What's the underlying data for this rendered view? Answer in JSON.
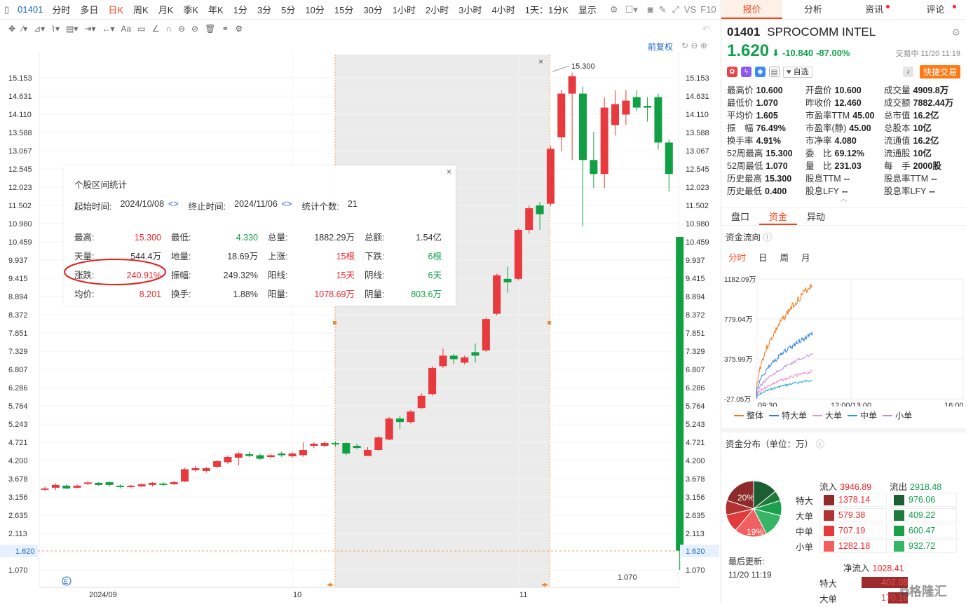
{
  "topbar": {
    "code": "01401",
    "tabs": [
      "分时",
      "多日",
      "日K",
      "周K",
      "月K",
      "季K",
      "年K",
      "1分",
      "3分",
      "5分",
      "10分",
      "15分",
      "30分",
      "1小时",
      "2小时",
      "3小时",
      "4小时",
      "1天：1分K",
      "显示"
    ],
    "active_tab": "日K",
    "vs_label": "VS",
    "f10_label": "F10"
  },
  "toolbar": {
    "text_tool": "Aa",
    "restore_label": "前复权"
  },
  "chart": {
    "price_labels": [
      "15.153",
      "14.631",
      "14.110",
      "13.588",
      "13.067",
      "12.545",
      "12.023",
      "11.502",
      "10.980",
      "10.459",
      "9.937",
      "9.415",
      "8.894",
      "8.372",
      "7.851",
      "7.329",
      "6.807",
      "6.286",
      "5.764",
      "5.243",
      "4.721",
      "4.200",
      "3.678",
      "3.156",
      "2.635",
      "2.113",
      "1.620",
      "1.070"
    ],
    "current_price_tag": "1.620",
    "date_labels": [
      "2024/09",
      "10",
      "11"
    ],
    "high_mark": "15.300",
    "low_mark": "1.070",
    "e_badge": "E",
    "sel_close": "×"
  },
  "chart_data": {
    "type": "candlestick",
    "ylim": [
      1.07,
      15.153
    ],
    "candles": [
      {
        "o": 3.38,
        "c": 3.4,
        "h": 3.45,
        "l": 3.33
      },
      {
        "o": 3.42,
        "c": 3.5,
        "h": 3.55,
        "l": 3.35
      },
      {
        "o": 3.48,
        "c": 3.4,
        "h": 3.52,
        "l": 3.38
      },
      {
        "o": 3.42,
        "c": 3.48,
        "h": 3.52,
        "l": 3.4
      },
      {
        "o": 3.55,
        "c": 3.57,
        "h": 3.62,
        "l": 3.5
      },
      {
        "o": 3.56,
        "c": 3.5,
        "h": 3.58,
        "l": 3.48
      },
      {
        "o": 3.58,
        "c": 3.5,
        "h": 3.6,
        "l": 3.45
      },
      {
        "o": 3.48,
        "c": 3.44,
        "h": 3.52,
        "l": 3.4
      },
      {
        "o": 3.44,
        "c": 3.48,
        "h": 3.5,
        "l": 3.4
      },
      {
        "o": 3.46,
        "c": 3.52,
        "h": 3.55,
        "l": 3.44
      },
      {
        "o": 3.5,
        "c": 3.56,
        "h": 3.58,
        "l": 3.46
      },
      {
        "o": 3.54,
        "c": 3.5,
        "h": 3.58,
        "l": 3.47
      },
      {
        "o": 3.52,
        "c": 3.58,
        "h": 3.62,
        "l": 3.5
      },
      {
        "o": 3.6,
        "c": 3.95,
        "h": 4.0,
        "l": 3.58
      },
      {
        "o": 3.92,
        "c": 3.98,
        "h": 4.05,
        "l": 3.88
      },
      {
        "o": 3.9,
        "c": 3.98,
        "h": 4.02,
        "l": 3.85
      },
      {
        "o": 4.02,
        "c": 4.18,
        "h": 4.22,
        "l": 3.98
      },
      {
        "o": 4.15,
        "c": 4.3,
        "h": 4.35,
        "l": 4.1
      },
      {
        "o": 4.28,
        "c": 4.4,
        "h": 4.45,
        "l": 4.05
      },
      {
        "o": 4.38,
        "c": 4.33,
        "h": 4.45,
        "l": 4.3
      },
      {
        "o": 4.35,
        "c": 4.25,
        "h": 4.4,
        "l": 4.22
      },
      {
        "o": 4.3,
        "c": 4.35,
        "h": 4.4,
        "l": 4.25
      },
      {
        "o": 4.4,
        "c": 4.35,
        "h": 4.45,
        "l": 4.3
      },
      {
        "o": 4.32,
        "c": 4.4,
        "h": 4.45,
        "l": 4.28
      },
      {
        "o": 4.35,
        "c": 4.5,
        "h": 4.72,
        "l": 4.3
      },
      {
        "o": 4.62,
        "c": 4.68,
        "h": 4.72,
        "l": 4.55
      },
      {
        "o": 4.62,
        "c": 4.7,
        "h": 4.75,
        "l": 4.58
      },
      {
        "o": 4.7,
        "c": 4.68,
        "h": 4.75,
        "l": 4.6
      },
      {
        "o": 4.7,
        "c": 4.4,
        "h": 4.72,
        "l": 4.35
      },
      {
        "o": 4.62,
        "c": 4.56,
        "h": 4.68,
        "l": 4.52
      },
      {
        "o": 4.33,
        "c": 4.5,
        "h": 4.58,
        "l": 4.33
      },
      {
        "o": 4.5,
        "c": 4.86,
        "h": 4.9,
        "l": 4.48
      },
      {
        "o": 4.8,
        "c": 5.4,
        "h": 5.45,
        "l": 4.78
      },
      {
        "o": 5.4,
        "c": 5.3,
        "h": 5.48,
        "l": 5.1
      },
      {
        "o": 5.3,
        "c": 5.6,
        "h": 5.65,
        "l": 5.25
      },
      {
        "o": 5.7,
        "c": 6.05,
        "h": 6.12,
        "l": 5.68
      },
      {
        "o": 6.1,
        "c": 6.85,
        "h": 6.9,
        "l": 6.05
      },
      {
        "o": 6.9,
        "c": 7.2,
        "h": 7.4,
        "l": 6.85
      },
      {
        "o": 7.2,
        "c": 7.1,
        "h": 7.25,
        "l": 6.95
      },
      {
        "o": 7.0,
        "c": 7.15,
        "h": 7.2,
        "l": 6.95
      },
      {
        "o": 7.3,
        "c": 7.2,
        "h": 7.55,
        "l": 7.0
      },
      {
        "o": 7.35,
        "c": 8.25,
        "h": 8.3,
        "l": 7.3
      },
      {
        "o": 8.4,
        "c": 9.5,
        "h": 9.55,
        "l": 8.35
      },
      {
        "o": 9.4,
        "c": 9.3,
        "h": 9.75,
        "l": 9.0
      },
      {
        "o": 9.4,
        "c": 10.8,
        "h": 10.85,
        "l": 9.35
      },
      {
        "o": 10.8,
        "c": 11.42,
        "h": 11.5,
        "l": 10.7
      },
      {
        "o": 11.5,
        "c": 11.25,
        "h": 11.6,
        "l": 10.8
      },
      {
        "o": 11.55,
        "c": 13.12,
        "h": 13.2,
        "l": 11.48
      },
      {
        "o": 13.45,
        "c": 14.7,
        "h": 14.8,
        "l": 13.05
      },
      {
        "o": 14.7,
        "c": 15.2,
        "h": 15.3,
        "l": 12.8
      },
      {
        "o": 14.7,
        "c": 12.8,
        "h": 14.9,
        "l": 10.9
      },
      {
        "o": 12.8,
        "c": 12.4,
        "h": 13.6,
        "l": 12.0
      },
      {
        "o": 12.4,
        "c": 14.3,
        "h": 14.6,
        "l": 12.0
      },
      {
        "o": 13.8,
        "c": 14.4,
        "h": 14.8,
        "l": 13.5
      },
      {
        "o": 14.1,
        "c": 14.5,
        "h": 14.8,
        "l": 13.8
      },
      {
        "o": 14.6,
        "c": 14.3,
        "h": 14.8,
        "l": 14.2
      },
      {
        "o": 14.35,
        "c": 14.3,
        "h": 14.6,
        "l": 13.9
      },
      {
        "o": 14.6,
        "c": 13.3,
        "h": 14.7,
        "l": 13.1
      },
      {
        "o": 13.3,
        "c": 12.4,
        "h": 13.4,
        "l": 11.9
      },
      {
        "o": 10.6,
        "c": 1.62,
        "h": 10.6,
        "l": 1.07
      }
    ]
  },
  "stats_panel": {
    "title": "个股区间统计",
    "close": "×",
    "start_label": "起始时间:",
    "start_value": "2024/10/08",
    "end_label": "终止时间:",
    "end_value": "2024/11/06",
    "count_label": "统计个数:",
    "count_value": "21",
    "rows": [
      [
        {
          "k": "最高:",
          "v": "15.300",
          "c": "up"
        },
        {
          "k": "最低:",
          "v": "4.330",
          "c": "dn"
        },
        {
          "k": "总量:",
          "v": "1882.29万",
          "c": ""
        },
        {
          "k": "总额:",
          "v": "1.54亿",
          "c": ""
        }
      ],
      [
        {
          "k": "天量:",
          "v": "544.4万",
          "c": ""
        },
        {
          "k": "地量:",
          "v": "18.69万",
          "c": ""
        },
        {
          "k": "上涨:",
          "v": "15根",
          "c": "up"
        },
        {
          "k": "下跌:",
          "v": "6根",
          "c": "dn"
        }
      ],
      [
        {
          "k": "涨跌:",
          "v": "240.91%",
          "c": "up"
        },
        {
          "k": "振幅:",
          "v": "249.32%",
          "c": ""
        },
        {
          "k": "阳线:",
          "v": "15天",
          "c": "up"
        },
        {
          "k": "阴线:",
          "v": "6天",
          "c": "dn"
        }
      ],
      [
        {
          "k": "均价:",
          "v": "8.201",
          "c": "up"
        },
        {
          "k": "换手:",
          "v": "1.88%",
          "c": ""
        },
        {
          "k": "阳量:",
          "v": "1078.69万",
          "c": "up"
        },
        {
          "k": "阴量:",
          "v": "803.6万",
          "c": "dn"
        }
      ]
    ]
  },
  "right_panel": {
    "tabs": [
      "报价",
      "分析",
      "资讯",
      "评论"
    ],
    "active_tab": "报价",
    "code": "01401",
    "name": "SPROCOMM INTEL",
    "price": "1.620",
    "arrow": "⬇",
    "change": "-10.840",
    "change_pct": "-87.00%",
    "trade_status": "交易中 11/20 11:19",
    "watch_label": "自选",
    "quick_trade": "快捷交易",
    "quote": [
      {
        "k": "最高价",
        "v": "10.600",
        "c": "dn"
      },
      {
        "k": "开盘价",
        "v": "10.600",
        "c": "dn"
      },
      {
        "k": "成交量",
        "v": "4909.8万",
        "c": ""
      },
      {
        "k": "最低价",
        "v": "1.070",
        "c": "dn"
      },
      {
        "k": "昨收价",
        "v": "12.460",
        "c": ""
      },
      {
        "k": "成交额",
        "v": "7882.44万",
        "c": ""
      },
      {
        "k": "平均价",
        "v": "1.605",
        "c": "dn"
      },
      {
        "k": "市盈率TTM",
        "v": "45.00",
        "c": ""
      },
      {
        "k": "总市值",
        "v": "16.2亿",
        "c": ""
      },
      {
        "k": "振　幅",
        "v": "76.49%",
        "c": ""
      },
      {
        "k": "市盈率(静)",
        "v": "45.00",
        "c": ""
      },
      {
        "k": "总股本",
        "v": "10亿",
        "c": ""
      },
      {
        "k": "换手率",
        "v": "4.91%",
        "c": ""
      },
      {
        "k": "市净率",
        "v": "4.080",
        "c": ""
      },
      {
        "k": "流通值",
        "v": "16.2亿",
        "c": ""
      },
      {
        "k": "52周最高",
        "v": "15.300",
        "c": "up"
      },
      {
        "k": "委　比",
        "v": "69.12%",
        "c": ""
      },
      {
        "k": "流通股",
        "v": "10亿",
        "c": ""
      },
      {
        "k": "52周最低",
        "v": "1.070",
        "c": "dn"
      },
      {
        "k": "量　比",
        "v": "231.03",
        "c": ""
      },
      {
        "k": "每　手",
        "v": "2000股",
        "c": ""
      },
      {
        "k": "历史最高",
        "v": "15.300",
        "c": "up"
      },
      {
        "k": "股息TTM",
        "v": "--",
        "c": ""
      },
      {
        "k": "股息率TTM",
        "v": "--",
        "c": ""
      },
      {
        "k": "历史最低",
        "v": "0.400",
        "c": "dn"
      },
      {
        "k": "股息LFY",
        "v": "--",
        "c": ""
      },
      {
        "k": "股息率LFY",
        "v": "--",
        "c": ""
      }
    ],
    "subtabs": [
      "盘口",
      "资金",
      "异动"
    ],
    "active_subtab": "资金",
    "flow_title": "资金流向",
    "periods": [
      "分时",
      "日",
      "周",
      "月"
    ],
    "active_period": "分时",
    "flow_yticks": [
      "1182.09万",
      "779.04万",
      "375.99万",
      "-27.05万"
    ],
    "flow_xticks": [
      "09:30",
      "12:00/13:00",
      "16:00"
    ],
    "flow_legend": [
      {
        "name": "整体",
        "color": "#f27a1a"
      },
      {
        "name": "特大单",
        "color": "#2f7fe0"
      },
      {
        "name": "大单",
        "color": "#f08ccf"
      },
      {
        "name": "中单",
        "color": "#1aa3d8"
      },
      {
        "name": "小单",
        "color": "#b98ce8"
      }
    ],
    "dist_title": "资金分布（单位：万）",
    "pie_pct_1": "20%",
    "pie_pct_2": "19%",
    "inflow_label": "流入",
    "inflow_total": "3946.89",
    "outflow_label": "流出",
    "outflow_total": "2918.48",
    "dist_rows": [
      {
        "name": "特大",
        "in": "1378.14",
        "out": "976.06",
        "inc": "#8e2a2a",
        "outc": "#1b5e34"
      },
      {
        "name": "大单",
        "in": "579.38",
        "out": "409.22",
        "inc": "#b03232",
        "outc": "#1f7a3d"
      },
      {
        "name": "中单",
        "in": "707.19",
        "out": "600.47",
        "inc": "#e33b3b",
        "outc": "#1c9f4a"
      },
      {
        "name": "小单",
        "in": "1282.18",
        "out": "932.72",
        "inc": "#f06060",
        "outc": "#36b566"
      }
    ],
    "updated_label": "最后更新:",
    "updated_time": "11/20 11:19",
    "netflow_label": "净流入",
    "netflow_value": "1028.41",
    "net_rows": [
      {
        "name": "特大",
        "v": "402.08"
      },
      {
        "name": "大单",
        "v": "170.16"
      }
    ],
    "watermark": "格隆汇"
  }
}
